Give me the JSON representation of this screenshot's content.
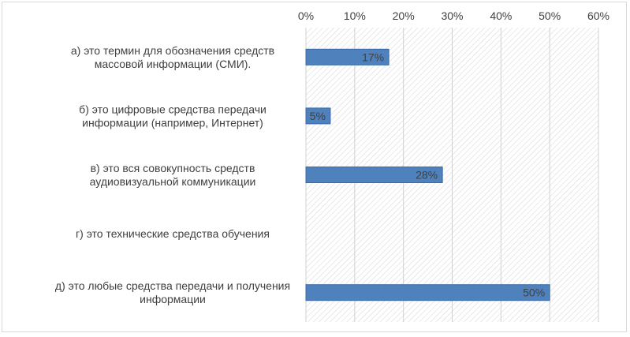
{
  "chart_data": {
    "type": "bar",
    "orientation": "horizontal",
    "categories": [
      [
        "а) это термин для обозначения средств",
        "массовой информации (СМИ)."
      ],
      [
        "б) это цифровые средства передачи",
        "информации (например, Интернет)"
      ],
      [
        "в) это вся совокупность средств",
        "аудиовизуальной коммуникации"
      ],
      [
        "г) это технические средства обучения"
      ],
      [
        "д) это любые средства передачи и получения",
        "информации"
      ]
    ],
    "values": [
      17,
      5,
      28,
      null,
      50
    ],
    "data_labels": [
      "17%",
      "5%",
      "28%",
      "",
      "50%"
    ],
    "x_ticks": [
      "0%",
      "10%",
      "20%",
      "30%",
      "40%",
      "50%",
      "60%"
    ],
    "xlim": [
      0,
      60
    ],
    "x_axis_position": "top",
    "grid": true,
    "colors": {
      "bar": "#4f81bd",
      "bar_edge": "#3a6aa6",
      "grid": "#d0d0d0",
      "hatch": "#c8c8c8",
      "text": "#404040"
    }
  }
}
